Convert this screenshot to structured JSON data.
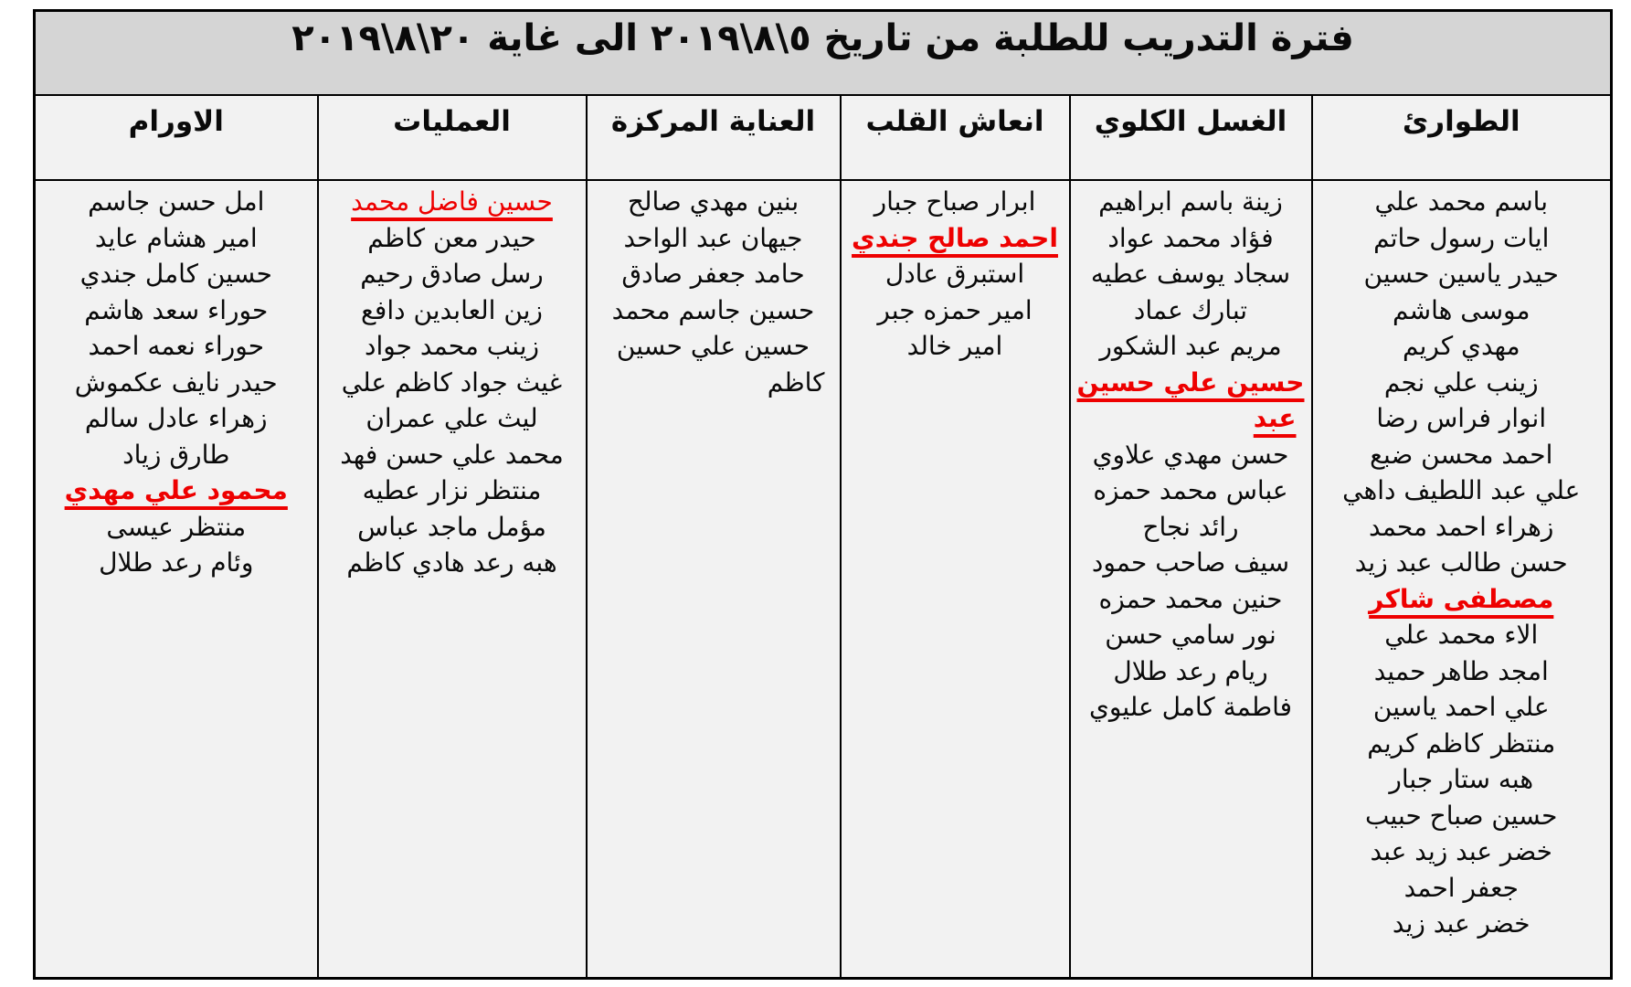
{
  "title": "فترة التدريب للطلبة من تاريخ ٥\\٨\\٢٠١٩ الى غاية ٢٠\\٨\\٢٠١٩",
  "colors": {
    "red": "#ee0000",
    "title_bg": "#d5d5d5",
    "cell_bg": "#f2f2f2"
  },
  "columns": [
    {
      "header": "الطوارئ",
      "names": [
        {
          "t": "باسم محمد علي"
        },
        {
          "t": "ايات رسول حاتم"
        },
        {
          "t": "حيدر ياسين حسين"
        },
        {
          "t": "موسى هاشم"
        },
        {
          "t": "مهدي كريم"
        },
        {
          "t": "زينب علي نجم"
        },
        {
          "t": "انوار فراس رضا"
        },
        {
          "t": "احمد محسن ضبع"
        },
        {
          "t": "علي عبد اللطيف داهي"
        },
        {
          "t": "زهراء احمد محمد"
        },
        {
          "t": "حسن طالب عبد زيد"
        },
        {
          "t": "مصطفى شاكر",
          "s": "red-bold"
        },
        {
          "t": "الاء محمد علي"
        },
        {
          "t": "امجد طاهر حميد"
        },
        {
          "t": "علي احمد ياسين"
        },
        {
          "t": "منتظر كاظم كريم"
        },
        {
          "t": "هبه ستار جبار"
        },
        {
          "t": "حسين صباح حبيب"
        },
        {
          "t": "خضر عبد زيد عبد"
        },
        {
          "t": "جعفر احمد"
        },
        {
          "t": "خضر عبد زيد"
        }
      ]
    },
    {
      "header": "الغسل الكلوي",
      "names": [
        {
          "t": "زينة باسم ابراهيم"
        },
        {
          "t": "فؤاد محمد عواد"
        },
        {
          "t": "سجاد يوسف عطيه"
        },
        {
          "t": "تبارك عماد"
        },
        {
          "t": "مريم عبد الشكور"
        },
        {
          "t": "حسين علي حسين",
          "s": "red-bold"
        },
        {
          "t": "عبد",
          "s": "red-bold",
          "a": "right"
        },
        {
          "t": "حسن مهدي علاوي"
        },
        {
          "t": "عباس محمد حمزه"
        },
        {
          "t": "رائد نجاح"
        },
        {
          "t": "سيف صاحب حمود"
        },
        {
          "t": "حنين محمد حمزه"
        },
        {
          "t": "نور سامي حسن"
        },
        {
          "t": "ريام رعد طلال"
        },
        {
          "t": "فاطمة كامل عليوي"
        }
      ]
    },
    {
      "header": "انعاش القلب",
      "names": [
        {
          "t": "ابرار صباح جبار"
        },
        {
          "t": "احمد صالح جندي",
          "s": "red-bold"
        },
        {
          "t": "استبرق عادل"
        },
        {
          "t": "امير حمزه جبر"
        },
        {
          "t": "امير خالد"
        }
      ]
    },
    {
      "header": "العناية المركزة",
      "names": [
        {
          "t": "بنين مهدي صالح"
        },
        {
          "t": "جيهان عبد الواحد"
        },
        {
          "t": "حامد جعفر صادق"
        },
        {
          "t": "حسين جاسم محمد"
        },
        {
          "t": "حسين علي حسين"
        },
        {
          "t": "كاظم",
          "a": "right"
        }
      ]
    },
    {
      "header": "العمليات",
      "names": [
        {
          "t": "حسين فاضل محمد",
          "s": "red"
        },
        {
          "t": "حيدر معن كاظم"
        },
        {
          "t": "رسل صادق رحيم"
        },
        {
          "t": "زين العابدين دافع"
        },
        {
          "t": "زينب محمد جواد"
        },
        {
          "t": "غيث جواد كاظم علي"
        },
        {
          "t": "ليث علي عمران"
        },
        {
          "t": "محمد علي حسن فهد"
        },
        {
          "t": "منتظر نزار عطيه"
        },
        {
          "t": "مؤمل ماجد عباس"
        },
        {
          "t": "هبه رعد هادي كاظم"
        }
      ]
    },
    {
      "header": "الاورام",
      "names": [
        {
          "t": "امل حسن جاسم"
        },
        {
          "t": "امير هشام عايد"
        },
        {
          "t": "حسين كامل جندي"
        },
        {
          "t": "حوراء سعد هاشم"
        },
        {
          "t": "حوراء نعمه احمد"
        },
        {
          "t": "حيدر نايف عكموش"
        },
        {
          "t": "زهراء عادل سالم"
        },
        {
          "t": "طارق زياد"
        },
        {
          "t": "محمود علي مهدي",
          "s": "red-bold"
        },
        {
          "t": "منتظر عيسى"
        },
        {
          "t": "وئام رعد طلال"
        }
      ]
    }
  ]
}
